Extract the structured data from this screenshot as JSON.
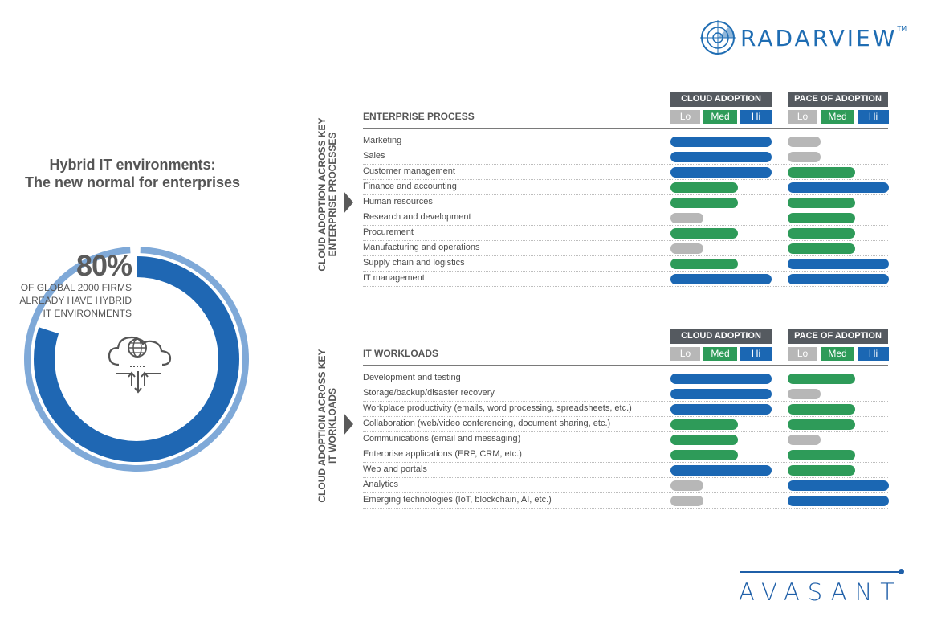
{
  "brand": {
    "radarview": "RADARVIEW",
    "tm": "TM",
    "avasant": "AVASANT"
  },
  "left": {
    "title_line1": "Hybrid IT environments:",
    "title_line2": "The new normal for enterprises",
    "percent": "80%",
    "percent_value": 80,
    "caption_line1": "OF GLOBAL 2000 FIRMS",
    "caption_line2": "ALREADY HAVE HYBRID",
    "caption_line3": "IT ENVIRONMENTS"
  },
  "colors": {
    "lo": "#b7b7b7",
    "med": "#2e9b59",
    "hi": "#1b67b3",
    "donut_dark": "#1f67b3",
    "donut_light": "#7fa9d8"
  },
  "chart_data": [
    {
      "type": "table",
      "title": "ENTERPRISE PROCESS",
      "side_label_line1": "CLOUD ADOPTION ACROSS KEY",
      "side_label_line2": "ENTERPRISE PROCESSES",
      "group1": "CLOUD ADOPTION",
      "group2": "PACE OF ADOPTION",
      "scale": [
        "Lo",
        "Med",
        "Hi"
      ],
      "rows": [
        {
          "label": "Marketing",
          "adoption": "Hi",
          "pace": "Lo"
        },
        {
          "label": "Sales",
          "adoption": "Hi",
          "pace": "Lo"
        },
        {
          "label": "Customer management",
          "adoption": "Hi",
          "pace": "Med"
        },
        {
          "label": "Finance and accounting",
          "adoption": "Med",
          "pace": "Hi"
        },
        {
          "label": "Human resources",
          "adoption": "Med",
          "pace": "Med"
        },
        {
          "label": "Research and development",
          "adoption": "Lo",
          "pace": "Med"
        },
        {
          "label": "Procurement",
          "adoption": "Med",
          "pace": "Med"
        },
        {
          "label": "Manufacturing and operations",
          "adoption": "Lo",
          "pace": "Med"
        },
        {
          "label": "Supply chain and logistics",
          "adoption": "Med",
          "pace": "Hi"
        },
        {
          "label": "IT management",
          "adoption": "Hi",
          "pace": "Hi"
        }
      ]
    },
    {
      "type": "table",
      "title": "IT WORKLOADS",
      "side_label_line1": "CLOUD ADOPTION ACROSS KEY",
      "side_label_line2": "IT WORKLOADS",
      "group1": "CLOUD ADOPTION",
      "group2": "PACE OF ADOPTION",
      "scale": [
        "Lo",
        "Med",
        "Hi"
      ],
      "rows": [
        {
          "label": "Development and testing",
          "adoption": "Hi",
          "pace": "Med"
        },
        {
          "label": "Storage/backup/disaster recovery",
          "adoption": "Hi",
          "pace": "Lo"
        },
        {
          "label": "Workplace productivity (emails, word processing, spreadsheets, etc.)",
          "adoption": "Hi",
          "pace": "Med"
        },
        {
          "label": "Collaboration (web/video conferencing, document sharing, etc.)",
          "adoption": "Med",
          "pace": "Med"
        },
        {
          "label": "Communications (email and messaging)",
          "adoption": "Med",
          "pace": "Lo"
        },
        {
          "label": "Enterprise applications (ERP, CRM, etc.)",
          "adoption": "Med",
          "pace": "Med"
        },
        {
          "label": "Web and portals",
          "adoption": "Hi",
          "pace": "Med"
        },
        {
          "label": "Analytics",
          "adoption": "Lo",
          "pace": "Hi"
        },
        {
          "label": "Emerging technologies (IoT, blockchain, AI, etc.)",
          "adoption": "Lo",
          "pace": "Hi"
        }
      ]
    }
  ]
}
